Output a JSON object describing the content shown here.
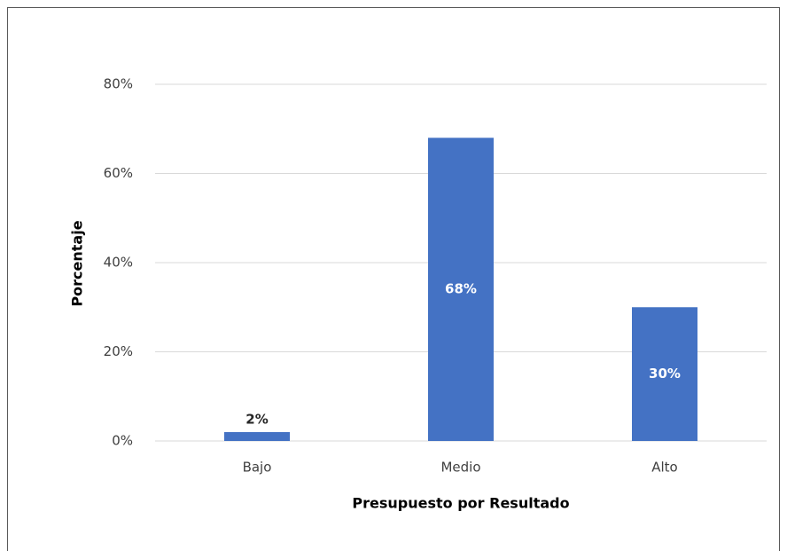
{
  "chart_data": {
    "type": "bar",
    "xlabel": "Presupuesto por Resultado",
    "ylabel": "Porcentaje",
    "categories": [
      "Bajo",
      "Medio",
      "Alto"
    ],
    "values": [
      2,
      68,
      30
    ],
    "value_labels": [
      "2%",
      "68%",
      "30%"
    ],
    "color": "#4472c4",
    "ylim": [
      0,
      80
    ],
    "yticks": [
      {
        "value": 0,
        "label": "0%"
      },
      {
        "value": 20,
        "label": "20%"
      },
      {
        "value": 40,
        "label": "40%"
      },
      {
        "value": 60,
        "label": "60%"
      },
      {
        "value": 80,
        "label": "80%"
      }
    ],
    "grid": true
  }
}
